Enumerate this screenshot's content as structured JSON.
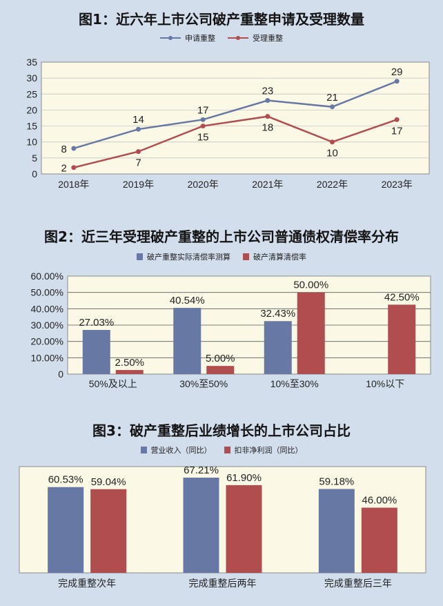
{
  "colors": {
    "blue": "#6678a3",
    "red": "#b04d4f",
    "plot_bg": "#fbf8e6",
    "page_bg": "#d3deed"
  },
  "chart_data": [
    {
      "type": "line",
      "title": "图1：近六年上市公司破产重整申请及受理数量",
      "categories": [
        "2018年",
        "2019年",
        "2020年",
        "2021年",
        "2022年",
        "2023年"
      ],
      "series": [
        {
          "name": "申请重整",
          "values": [
            8,
            14,
            17,
            23,
            21,
            29
          ]
        },
        {
          "name": "受理重整",
          "values": [
            2,
            7,
            15,
            18,
            10,
            17
          ]
        }
      ],
      "ylim": [
        0,
        35
      ],
      "yticks": [
        "0",
        "5",
        "10",
        "15",
        "20",
        "25",
        "30",
        "35"
      ],
      "grid": true,
      "legend": "top"
    },
    {
      "type": "bar",
      "title": "图2：近三年受理破产重整的上市公司普通债权清偿率分布",
      "categories": [
        "50%及以上",
        "30%至50%",
        "10%至30%",
        "10%以下"
      ],
      "series": [
        {
          "name": "破产重整实际清偿率测算",
          "values": [
            27.03,
            40.54,
            32.43,
            null
          ],
          "labels": [
            "27.03%",
            "40.54%",
            "32.43%",
            ""
          ]
        },
        {
          "name": "破产清算清偿率",
          "values": [
            2.5,
            5.0,
            50.0,
            42.5
          ],
          "labels": [
            "2.50%",
            "5.00%",
            "50.00%",
            "42.50%"
          ]
        }
      ],
      "ylim": [
        0,
        60
      ],
      "yticks": [
        "0",
        "10.00%",
        "20.00%",
        "30.00%",
        "40.00%",
        "50.00%",
        "60.00%"
      ],
      "grid": true,
      "legend": "top"
    },
    {
      "type": "bar",
      "title": "图3：破产重整后业绩增长的上市公司占比",
      "categories": [
        "完成重整次年",
        "完成重整后两年",
        "完成重整后三年"
      ],
      "series": [
        {
          "name": "营业收入（同比）",
          "values": [
            60.53,
            67.21,
            59.18
          ],
          "labels": [
            "60.53%",
            "67.21%",
            "59.18%"
          ]
        },
        {
          "name": "扣非净利润（同比）",
          "values": [
            59.04,
            61.9,
            46.0
          ],
          "labels": [
            "59.04%",
            "61.90%",
            "46.00%"
          ]
        }
      ],
      "ylim": [
        0,
        75
      ],
      "grid": false,
      "legend": "top"
    }
  ]
}
